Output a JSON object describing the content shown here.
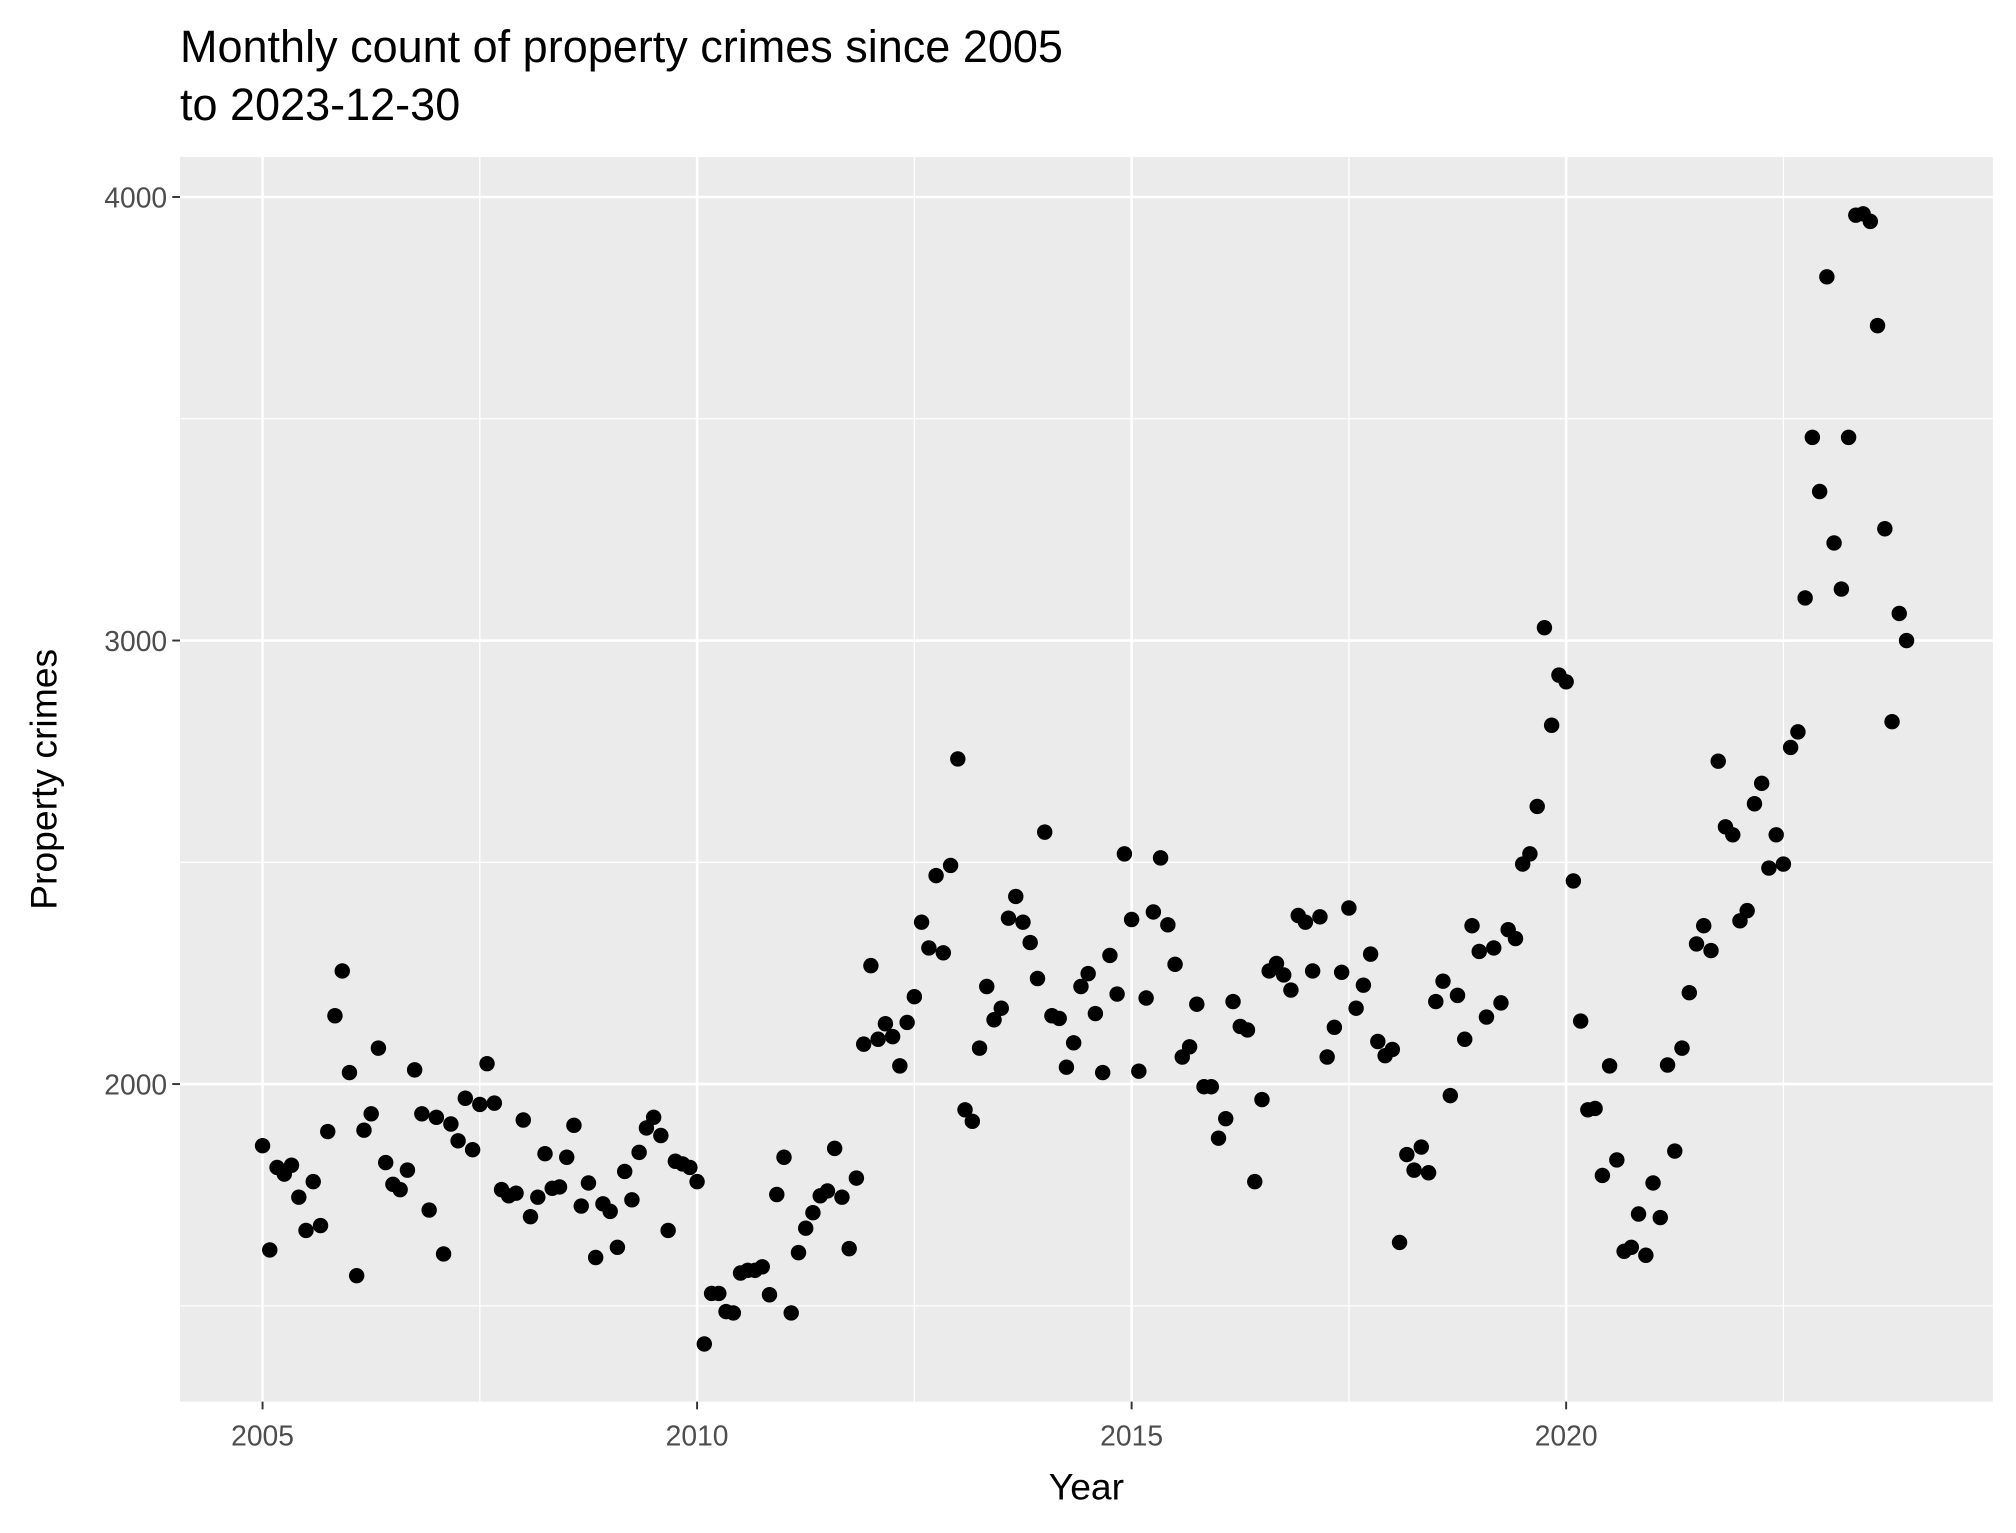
{
  "chart_data": {
    "type": "scatter",
    "title": [
      "Monthly count of property crimes since 2005",
      "to 2023-12-30"
    ],
    "x_label": "Year",
    "y_label": "Property crimes",
    "color": "#000000",
    "grid": true,
    "xlim": [
      2004.05,
      2024.91
    ],
    "xticks": [
      2005,
      2010,
      2015,
      2020
    ],
    "x_minor_grid": [
      2007.5,
      2012.5,
      2017.5,
      2022.5
    ],
    "ylim": [
      1284,
      4090
    ],
    "yticks": [
      2000,
      3000,
      4000
    ],
    "y_minor_grid": [
      1500,
      2500,
      3500
    ],
    "x": [
      2005.0,
      2005.083,
      2005.167,
      2005.25,
      2005.333,
      2005.417,
      2005.5,
      2005.583,
      2005.667,
      2005.75,
      2005.833,
      2005.917,
      2006.0,
      2006.083,
      2006.167,
      2006.25,
      2006.333,
      2006.417,
      2006.5,
      2006.583,
      2006.667,
      2006.75,
      2006.833,
      2006.917,
      2007.0,
      2007.083,
      2007.167,
      2007.25,
      2007.333,
      2007.417,
      2007.5,
      2007.583,
      2007.667,
      2007.75,
      2007.833,
      2007.917,
      2008.0,
      2008.083,
      2008.167,
      2008.25,
      2008.333,
      2008.417,
      2008.5,
      2008.583,
      2008.667,
      2008.75,
      2008.833,
      2008.917,
      2009.0,
      2009.083,
      2009.167,
      2009.25,
      2009.333,
      2009.417,
      2009.5,
      2009.583,
      2009.667,
      2009.75,
      2009.833,
      2009.917,
      2010.0,
      2010.083,
      2010.167,
      2010.25,
      2010.333,
      2010.417,
      2010.5,
      2010.583,
      2010.667,
      2010.75,
      2010.833,
      2010.917,
      2011.0,
      2011.083,
      2011.167,
      2011.25,
      2011.333,
      2011.417,
      2011.5,
      2011.583,
      2011.667,
      2011.75,
      2011.833,
      2011.917,
      2012.0,
      2012.083,
      2012.167,
      2012.25,
      2012.333,
      2012.417,
      2012.5,
      2012.583,
      2012.667,
      2012.75,
      2012.833,
      2012.917,
      2013.0,
      2013.083,
      2013.167,
      2013.25,
      2013.333,
      2013.417,
      2013.5,
      2013.583,
      2013.667,
      2013.75,
      2013.833,
      2013.917,
      2014.0,
      2014.083,
      2014.167,
      2014.25,
      2014.333,
      2014.417,
      2014.5,
      2014.583,
      2014.667,
      2014.75,
      2014.833,
      2014.917,
      2015.0,
      2015.083,
      2015.167,
      2015.25,
      2015.333,
      2015.417,
      2015.5,
      2015.583,
      2015.667,
      2015.75,
      2015.833,
      2015.917,
      2016.0,
      2016.083,
      2016.167,
      2016.25,
      2016.333,
      2016.417,
      2016.5,
      2016.583,
      2016.667,
      2016.75,
      2016.833,
      2016.917,
      2017.0,
      2017.083,
      2017.167,
      2017.25,
      2017.333,
      2017.417,
      2017.5,
      2017.583,
      2017.667,
      2017.75,
      2017.833,
      2017.917,
      2018.0,
      2018.083,
      2018.167,
      2018.25,
      2018.333,
      2018.417,
      2018.5,
      2018.583,
      2018.667,
      2018.75,
      2018.833,
      2018.917,
      2019.0,
      2019.083,
      2019.167,
      2019.25,
      2019.333,
      2019.417,
      2019.5,
      2019.583,
      2019.667,
      2019.75,
      2019.833,
      2019.917,
      2020.0,
      2020.083,
      2020.167,
      2020.25,
      2020.333,
      2020.417,
      2020.5,
      2020.583,
      2020.667,
      2020.75,
      2020.833,
      2020.917,
      2021.0,
      2021.083,
      2021.167,
      2021.25,
      2021.333,
      2021.417,
      2021.5,
      2021.583,
      2021.667,
      2021.75,
      2021.833,
      2021.917,
      2022.0,
      2022.083,
      2022.167,
      2022.25,
      2022.333,
      2022.417,
      2022.5,
      2022.583,
      2022.667,
      2022.75,
      2022.833,
      2022.917,
      2023.0,
      2023.083,
      2023.167,
      2023.25,
      2023.333,
      2023.417,
      2023.5,
      2023.583,
      2023.667,
      2023.75,
      2023.833,
      2023.917
    ],
    "values": [
      1861,
      1626,
      1812,
      1797,
      1817,
      1745,
      1670,
      1780,
      1681,
      1893,
      2154,
      2255,
      2026,
      1568,
      1896,
      1933,
      2081,
      1823,
      1774,
      1762,
      1806,
      2032,
      1933,
      1716,
      1925,
      1617,
      1910,
      1872,
      1968,
      1852,
      1954,
      2046,
      1957,
      1762,
      1748,
      1754,
      1919,
      1701,
      1745,
      1843,
      1765,
      1768,
      1835,
      1907,
      1725,
      1777,
      1609,
      1730,
      1713,
      1632,
      1803,
      1739,
      1846,
      1901,
      1925,
      1884,
      1670,
      1826,
      1820,
      1812,
      1780,
      1414,
      1528,
      1528,
      1487,
      1484,
      1574,
      1580,
      1580,
      1588,
      1525,
      1751,
      1835,
      1484,
      1620,
      1675,
      1710,
      1748,
      1759,
      1855,
      1745,
      1629,
      1788,
      2090,
      2267,
      2101,
      2136,
      2107,
      2041,
      2139,
      2197,
      2365,
      2307,
      2470,
      2296,
      2493,
      2733,
      1942,
      1916,
      2081,
      2220,
      2145,
      2171,
      2374,
      2423,
      2365,
      2319,
      2238,
      2568,
      2154,
      2148,
      2038,
      2093,
      2220,
      2249,
      2159,
      2026,
      2290,
      2203,
      2519,
      2371,
      2029,
      2194,
      2388,
      2510,
      2359,
      2270,
      2061,
      2084,
      2180,
      1994,
      1994,
      1878,
      1922,
      2186,
      2130,
      2122,
      1780,
      1965,
      2255,
      2272,
      2246,
      2212,
      2380,
      2365,
      2255,
      2377,
      2061,
      2128,
      2252,
      2397,
      2171,
      2223,
      2293,
      2096,
      2064,
      2078,
      1643,
      1841,
      1806,
      1858,
      1800,
      2186,
      2232,
      1974,
      2200,
      2101,
      2357,
      2299,
      2151,
      2307,
      2183,
      2348,
      2328,
      2496,
      2519,
      2626,
      3029,
      2809,
      2922,
      2907,
      2458,
      2142,
      1942,
      1945,
      1794,
      2041,
      1829,
      1623,
      1632,
      1707,
      1614,
      1777,
      1699,
      2043,
      1849,
      2081,
      2206,
      2316,
      2357,
      2301,
      2728,
      2580,
      2562,
      2368,
      2391,
      2632,
      2678,
      2487,
      2562,
      2496,
      2759,
      2794,
      3096,
      3458,
      3336,
      3820,
      3220,
      3116,
      3458,
      3959,
      3962,
      3945,
      3710,
      3252,
      2817,
      3061,
      3000
    ]
  }
}
